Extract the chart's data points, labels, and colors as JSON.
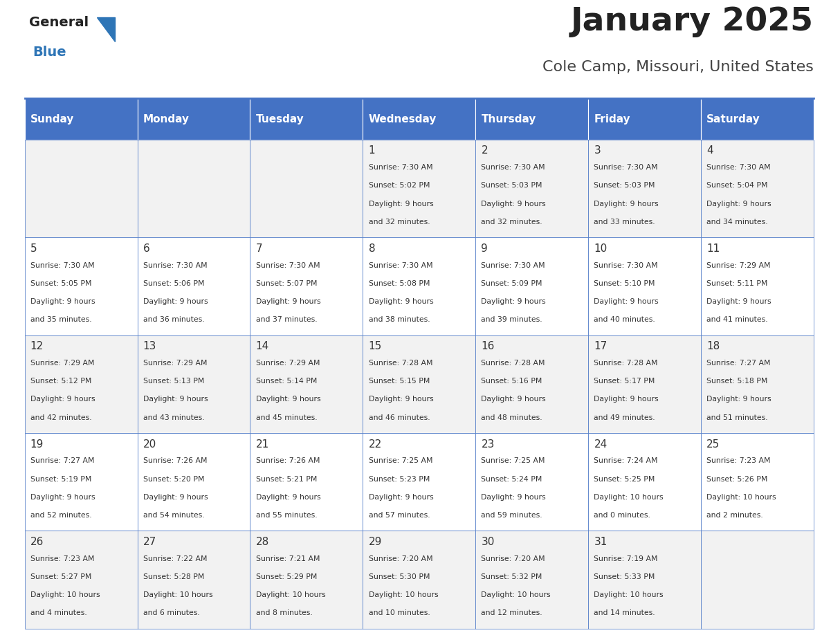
{
  "title": "January 2025",
  "subtitle": "Cole Camp, Missouri, United States",
  "days_of_week": [
    "Sunday",
    "Monday",
    "Tuesday",
    "Wednesday",
    "Thursday",
    "Friday",
    "Saturday"
  ],
  "header_bg": "#4472C4",
  "header_text": "#FFFFFF",
  "row_bg_even": "#F2F2F2",
  "row_bg_odd": "#FFFFFF",
  "cell_border": "#4472C4",
  "day_number_color": "#333333",
  "text_color": "#333333",
  "title_color": "#222222",
  "subtitle_color": "#444444",
  "logo_general_color": "#222222",
  "logo_blue_color": "#2E75B6",
  "calendar_data": [
    [
      null,
      null,
      null,
      {
        "day": 1,
        "sunrise": "7:30 AM",
        "sunset": "5:02 PM",
        "daylight": "9 hours and 32 minutes."
      },
      {
        "day": 2,
        "sunrise": "7:30 AM",
        "sunset": "5:03 PM",
        "daylight": "9 hours and 32 minutes."
      },
      {
        "day": 3,
        "sunrise": "7:30 AM",
        "sunset": "5:03 PM",
        "daylight": "9 hours and 33 minutes."
      },
      {
        "day": 4,
        "sunrise": "7:30 AM",
        "sunset": "5:04 PM",
        "daylight": "9 hours and 34 minutes."
      }
    ],
    [
      {
        "day": 5,
        "sunrise": "7:30 AM",
        "sunset": "5:05 PM",
        "daylight": "9 hours and 35 minutes."
      },
      {
        "day": 6,
        "sunrise": "7:30 AM",
        "sunset": "5:06 PM",
        "daylight": "9 hours and 36 minutes."
      },
      {
        "day": 7,
        "sunrise": "7:30 AM",
        "sunset": "5:07 PM",
        "daylight": "9 hours and 37 minutes."
      },
      {
        "day": 8,
        "sunrise": "7:30 AM",
        "sunset": "5:08 PM",
        "daylight": "9 hours and 38 minutes."
      },
      {
        "day": 9,
        "sunrise": "7:30 AM",
        "sunset": "5:09 PM",
        "daylight": "9 hours and 39 minutes."
      },
      {
        "day": 10,
        "sunrise": "7:30 AM",
        "sunset": "5:10 PM",
        "daylight": "9 hours and 40 minutes."
      },
      {
        "day": 11,
        "sunrise": "7:29 AM",
        "sunset": "5:11 PM",
        "daylight": "9 hours and 41 minutes."
      }
    ],
    [
      {
        "day": 12,
        "sunrise": "7:29 AM",
        "sunset": "5:12 PM",
        "daylight": "9 hours and 42 minutes."
      },
      {
        "day": 13,
        "sunrise": "7:29 AM",
        "sunset": "5:13 PM",
        "daylight": "9 hours and 43 minutes."
      },
      {
        "day": 14,
        "sunrise": "7:29 AM",
        "sunset": "5:14 PM",
        "daylight": "9 hours and 45 minutes."
      },
      {
        "day": 15,
        "sunrise": "7:28 AM",
        "sunset": "5:15 PM",
        "daylight": "9 hours and 46 minutes."
      },
      {
        "day": 16,
        "sunrise": "7:28 AM",
        "sunset": "5:16 PM",
        "daylight": "9 hours and 48 minutes."
      },
      {
        "day": 17,
        "sunrise": "7:28 AM",
        "sunset": "5:17 PM",
        "daylight": "9 hours and 49 minutes."
      },
      {
        "day": 18,
        "sunrise": "7:27 AM",
        "sunset": "5:18 PM",
        "daylight": "9 hours and 51 minutes."
      }
    ],
    [
      {
        "day": 19,
        "sunrise": "7:27 AM",
        "sunset": "5:19 PM",
        "daylight": "9 hours and 52 minutes."
      },
      {
        "day": 20,
        "sunrise": "7:26 AM",
        "sunset": "5:20 PM",
        "daylight": "9 hours and 54 minutes."
      },
      {
        "day": 21,
        "sunrise": "7:26 AM",
        "sunset": "5:21 PM",
        "daylight": "9 hours and 55 minutes."
      },
      {
        "day": 22,
        "sunrise": "7:25 AM",
        "sunset": "5:23 PM",
        "daylight": "9 hours and 57 minutes."
      },
      {
        "day": 23,
        "sunrise": "7:25 AM",
        "sunset": "5:24 PM",
        "daylight": "9 hours and 59 minutes."
      },
      {
        "day": 24,
        "sunrise": "7:24 AM",
        "sunset": "5:25 PM",
        "daylight": "10 hours and 0 minutes."
      },
      {
        "day": 25,
        "sunrise": "7:23 AM",
        "sunset": "5:26 PM",
        "daylight": "10 hours and 2 minutes."
      }
    ],
    [
      {
        "day": 26,
        "sunrise": "7:23 AM",
        "sunset": "5:27 PM",
        "daylight": "10 hours and 4 minutes."
      },
      {
        "day": 27,
        "sunrise": "7:22 AM",
        "sunset": "5:28 PM",
        "daylight": "10 hours and 6 minutes."
      },
      {
        "day": 28,
        "sunrise": "7:21 AM",
        "sunset": "5:29 PM",
        "daylight": "10 hours and 8 minutes."
      },
      {
        "day": 29,
        "sunrise": "7:20 AM",
        "sunset": "5:30 PM",
        "daylight": "10 hours and 10 minutes."
      },
      {
        "day": 30,
        "sunrise": "7:20 AM",
        "sunset": "5:32 PM",
        "daylight": "10 hours and 12 minutes."
      },
      {
        "day": 31,
        "sunrise": "7:19 AM",
        "sunset": "5:33 PM",
        "daylight": "10 hours and 14 minutes."
      },
      null
    ]
  ]
}
